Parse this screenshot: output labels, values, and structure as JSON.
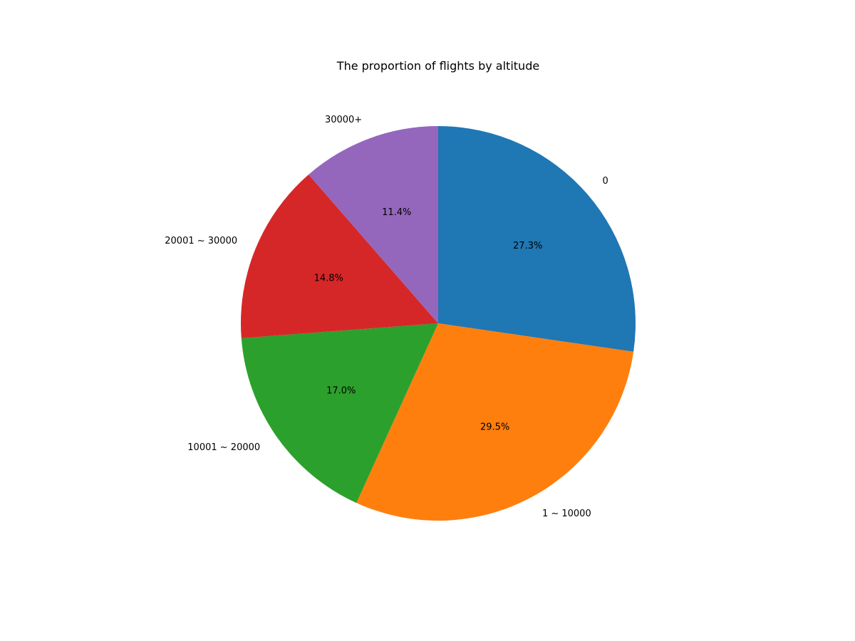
{
  "chart_data": {
    "type": "pie",
    "title": "The proportion of flights by altitude",
    "categories": [
      "0",
      "1 ~ 10000",
      "10001 ~ 20000",
      "20001 ~ 30000",
      "30000+"
    ],
    "values": [
      27.3,
      29.5,
      17.0,
      14.8,
      11.4
    ],
    "value_labels": [
      "27.3%",
      "29.5%",
      "17.0%",
      "14.8%",
      "11.4%"
    ],
    "colors": [
      "#1f77b4",
      "#ff7f0e",
      "#2ca02c",
      "#d62728",
      "#9467bd"
    ],
    "start": "top",
    "direction": "clockwise",
    "legend": "none"
  }
}
